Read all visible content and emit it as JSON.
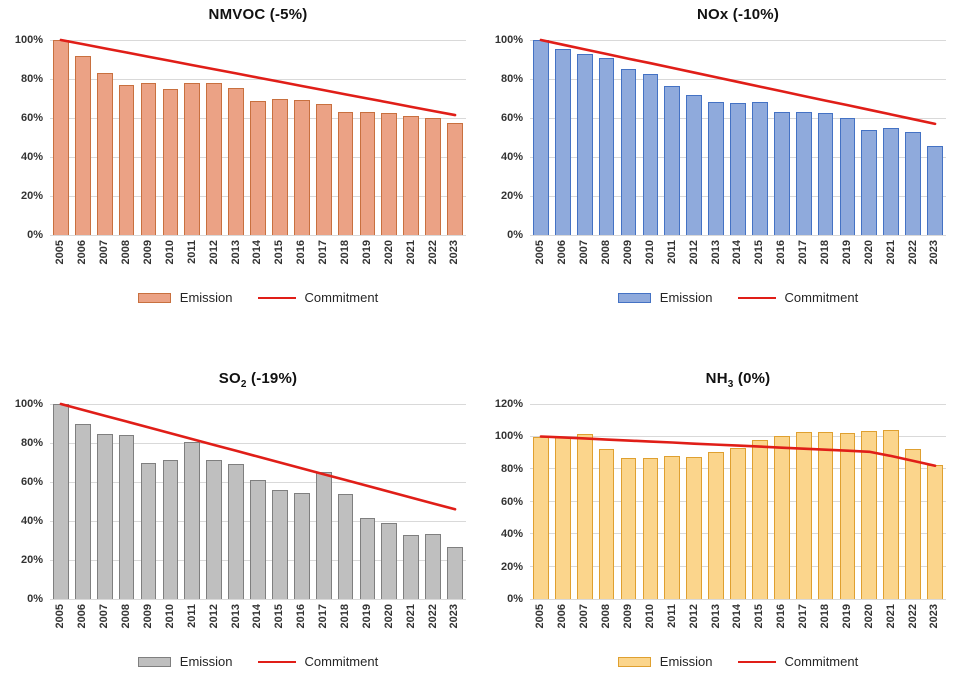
{
  "legend": {
    "emission_label": "Emission",
    "commitment_label": "Commitment"
  },
  "colors": {
    "gridline": "#d9d9d9",
    "commitment_red": "#e01e18"
  },
  "chart_data": [
    {
      "type": "bar",
      "title_main": "NMVOC",
      "title_sub": "",
      "title_suffix": " (-5%)",
      "categories": [
        "2005",
        "2006",
        "2007",
        "2008",
        "2009",
        "2010",
        "2011",
        "2012",
        "2013",
        "2014",
        "2015",
        "2016",
        "2017",
        "2018",
        "2019",
        "2020",
        "2021",
        "2022",
        "2023"
      ],
      "series": [
        {
          "name": "Emission",
          "kind": "bar",
          "values": [
            100,
            92,
            83,
            77,
            78,
            75,
            78,
            78,
            75.5,
            68.5,
            69.5,
            69,
            67,
            63,
            63,
            62.5,
            61,
            60,
            57.5
          ]
        },
        {
          "name": "Commitment",
          "kind": "line",
          "values": [
            100,
            97.9,
            95.7,
            93.6,
            91.4,
            89.3,
            87.1,
            85,
            82.9,
            80.7,
            78.6,
            76.4,
            74.3,
            72.1,
            70,
            67.9,
            65.7,
            63.6,
            61.5
          ]
        }
      ],
      "ylim": [
        0,
        100
      ],
      "yticks": [
        {
          "v": 0,
          "label": "0%"
        },
        {
          "v": 20,
          "label": "20%"
        },
        {
          "v": 40,
          "label": "40%"
        },
        {
          "v": 60,
          "label": "60%"
        },
        {
          "v": 80,
          "label": "80%"
        },
        {
          "v": 100,
          "label": "100%"
        }
      ],
      "bar_fill": "#eba285",
      "bar_border": "#c8703f",
      "line_color": "#e01e18"
    },
    {
      "type": "bar",
      "title_main": "NOx",
      "title_sub": "",
      "title_suffix": " (-10%)",
      "categories": [
        "2005",
        "2006",
        "2007",
        "2008",
        "2009",
        "2010",
        "2011",
        "2012",
        "2013",
        "2014",
        "2015",
        "2016",
        "2017",
        "2018",
        "2019",
        "2020",
        "2021",
        "2022",
        "2023"
      ],
      "series": [
        {
          "name": "Emission",
          "kind": "bar",
          "values": [
            100,
            95.5,
            93,
            91,
            85,
            82.5,
            76.5,
            72,
            68,
            67.5,
            68,
            63,
            63,
            62.5,
            60,
            54,
            55,
            53,
            45.5
          ]
        },
        {
          "name": "Commitment",
          "kind": "line",
          "values": [
            100,
            97.6,
            95.2,
            92.8,
            90.4,
            88.1,
            85.7,
            83.3,
            80.9,
            78.5,
            76.1,
            73.7,
            71.3,
            68.9,
            66.6,
            64.2,
            61.8,
            59.4,
            57
          ]
        }
      ],
      "ylim": [
        0,
        100
      ],
      "yticks": [
        {
          "v": 0,
          "label": "0%"
        },
        {
          "v": 20,
          "label": "20%"
        },
        {
          "v": 40,
          "label": "40%"
        },
        {
          "v": 60,
          "label": "60%"
        },
        {
          "v": 80,
          "label": "80%"
        },
        {
          "v": 100,
          "label": "100%"
        }
      ],
      "bar_fill": "#8faadc",
      "bar_border": "#4472c4",
      "line_color": "#e01e18"
    },
    {
      "type": "bar",
      "title_main": "SO",
      "title_sub": "2",
      "title_suffix": " (-19%)",
      "categories": [
        "2005",
        "2006",
        "2007",
        "2008",
        "2009",
        "2010",
        "2011",
        "2012",
        "2013",
        "2014",
        "2015",
        "2016",
        "2017",
        "2018",
        "2019",
        "2020",
        "2021",
        "2022",
        "2023"
      ],
      "series": [
        {
          "name": "Emission",
          "kind": "bar",
          "values": [
            100,
            90,
            84.5,
            84,
            70,
            71.5,
            80.5,
            71.5,
            69,
            61,
            56,
            54.5,
            65,
            54,
            41.5,
            39,
            33,
            33.5,
            26.5
          ]
        },
        {
          "name": "Commitment",
          "kind": "line",
          "values": [
            100,
            97,
            94,
            91,
            88,
            85,
            82,
            79,
            76,
            73,
            70,
            67,
            64,
            61,
            58,
            55,
            52,
            49,
            46
          ]
        }
      ],
      "ylim": [
        0,
        100
      ],
      "yticks": [
        {
          "v": 0,
          "label": "0%"
        },
        {
          "v": 20,
          "label": "20%"
        },
        {
          "v": 40,
          "label": "40%"
        },
        {
          "v": 60,
          "label": "60%"
        },
        {
          "v": 80,
          "label": "80%"
        },
        {
          "v": 100,
          "label": "100%"
        }
      ],
      "bar_fill": "#bfbfbf",
      "bar_border": "#7f7f7f",
      "line_color": "#e01e18"
    },
    {
      "type": "bar",
      "title_main": "NH",
      "title_sub": "3",
      "title_suffix": " (0%)",
      "categories": [
        "2005",
        "2006",
        "2007",
        "2008",
        "2009",
        "2010",
        "2011",
        "2012",
        "2013",
        "2014",
        "2015",
        "2016",
        "2017",
        "2018",
        "2019",
        "2020",
        "2021",
        "2022",
        "2023"
      ],
      "series": [
        {
          "name": "Emission",
          "kind": "bar",
          "values": [
            100,
            99.5,
            101.5,
            92.5,
            87,
            87,
            88,
            87.5,
            90.5,
            93,
            98,
            100.5,
            103,
            102.5,
            102,
            103.5,
            104,
            92.5,
            82.5
          ]
        },
        {
          "name": "Commitment",
          "kind": "line",
          "values": [
            100,
            99.4,
            98.8,
            98.1,
            97.5,
            96.9,
            96.3,
            95.6,
            95,
            94.4,
            93.8,
            93.1,
            92.5,
            91.9,
            91.3,
            90.6,
            88,
            85,
            82
          ]
        }
      ],
      "ylim": [
        0,
        120
      ],
      "yticks": [
        {
          "v": 0,
          "label": "0%"
        },
        {
          "v": 20,
          "label": "20%"
        },
        {
          "v": 40,
          "label": "40%"
        },
        {
          "v": 60,
          "label": "60%"
        },
        {
          "v": 80,
          "label": "80%"
        },
        {
          "v": 100,
          "label": "100%"
        },
        {
          "v": 120,
          "label": "120%"
        }
      ],
      "bar_fill": "#fbd58c",
      "bar_border": "#dfa030",
      "line_color": "#e01e18"
    }
  ]
}
